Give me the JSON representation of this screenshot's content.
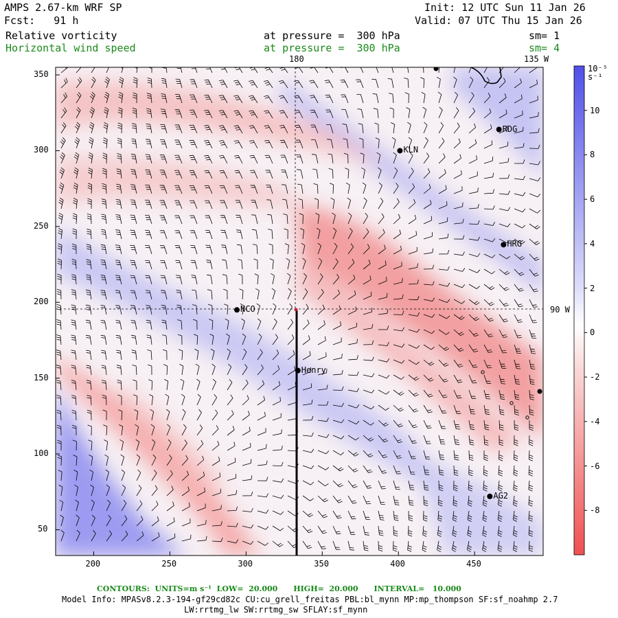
{
  "header": {
    "model": "AMPS 2.67-km WRF SP",
    "forecast": "Fcst:   91 h",
    "init": "Init: 12 UTC Sun 11 Jan 26",
    "valid": "Valid: 07 UTC Thu 15 Jan 26"
  },
  "fields": [
    {
      "name": "Relative vorticity",
      "level": "at pressure =  300 hPa",
      "sm": "sm= 1",
      "color": "#000000"
    },
    {
      "name": "Horizontal wind speed",
      "level": "at pressure =  300 hPa",
      "sm": "sm= 4",
      "color": "#1a8a1a"
    }
  ],
  "map": {
    "meridian_label_top": "180",
    "meridian_label_right_top": "135 W",
    "parallel_label_right": "90 W",
    "x_ticks": [
      "200",
      "250",
      "300",
      "350",
      "400",
      "450"
    ],
    "y_ticks": [
      "50",
      "100",
      "150",
      "200",
      "250",
      "300",
      "350"
    ],
    "x_range": [
      175,
      495
    ],
    "y_range": [
      33,
      355
    ],
    "stations": [
      {
        "name": "NCO",
        "x": 294,
        "y": 195
      },
      {
        "name": "Henry",
        "x": 334,
        "y": 155
      },
      {
        "name": "KLN",
        "x": 401,
        "y": 300
      },
      {
        "name": "RDG",
        "x": 466,
        "y": 314
      },
      {
        "name": "HRG",
        "x": 469,
        "y": 238
      },
      {
        "name": "AG2",
        "x": 460,
        "y": 72
      }
    ]
  },
  "colorbar": {
    "unit": "10⁻⁵ s⁻¹",
    "ticks": [
      "10",
      "8",
      "6",
      "4",
      "2",
      "0",
      "-2",
      "-4",
      "-6",
      "-8"
    ],
    "range": [
      -10,
      12
    ],
    "positive_color": "#4040e0",
    "negative_color": "#f04040"
  },
  "footer": {
    "contours": "CONTOURS:  UNITS=m s⁻¹  LOW=  20.000      HIGH=  20.000      INTERVAL=   10.000",
    "model_info": "Model Info: MPASv8.2.3-194-gf29cd82c CU:cu_grell_freitas PBL:bl_mynn MP:mp_thompson SF:sf_noahmp 2.7",
    "model_info2": "LW:rrtmg_lw SW:rrtmg_sw SFLAY:sf_mynn"
  }
}
